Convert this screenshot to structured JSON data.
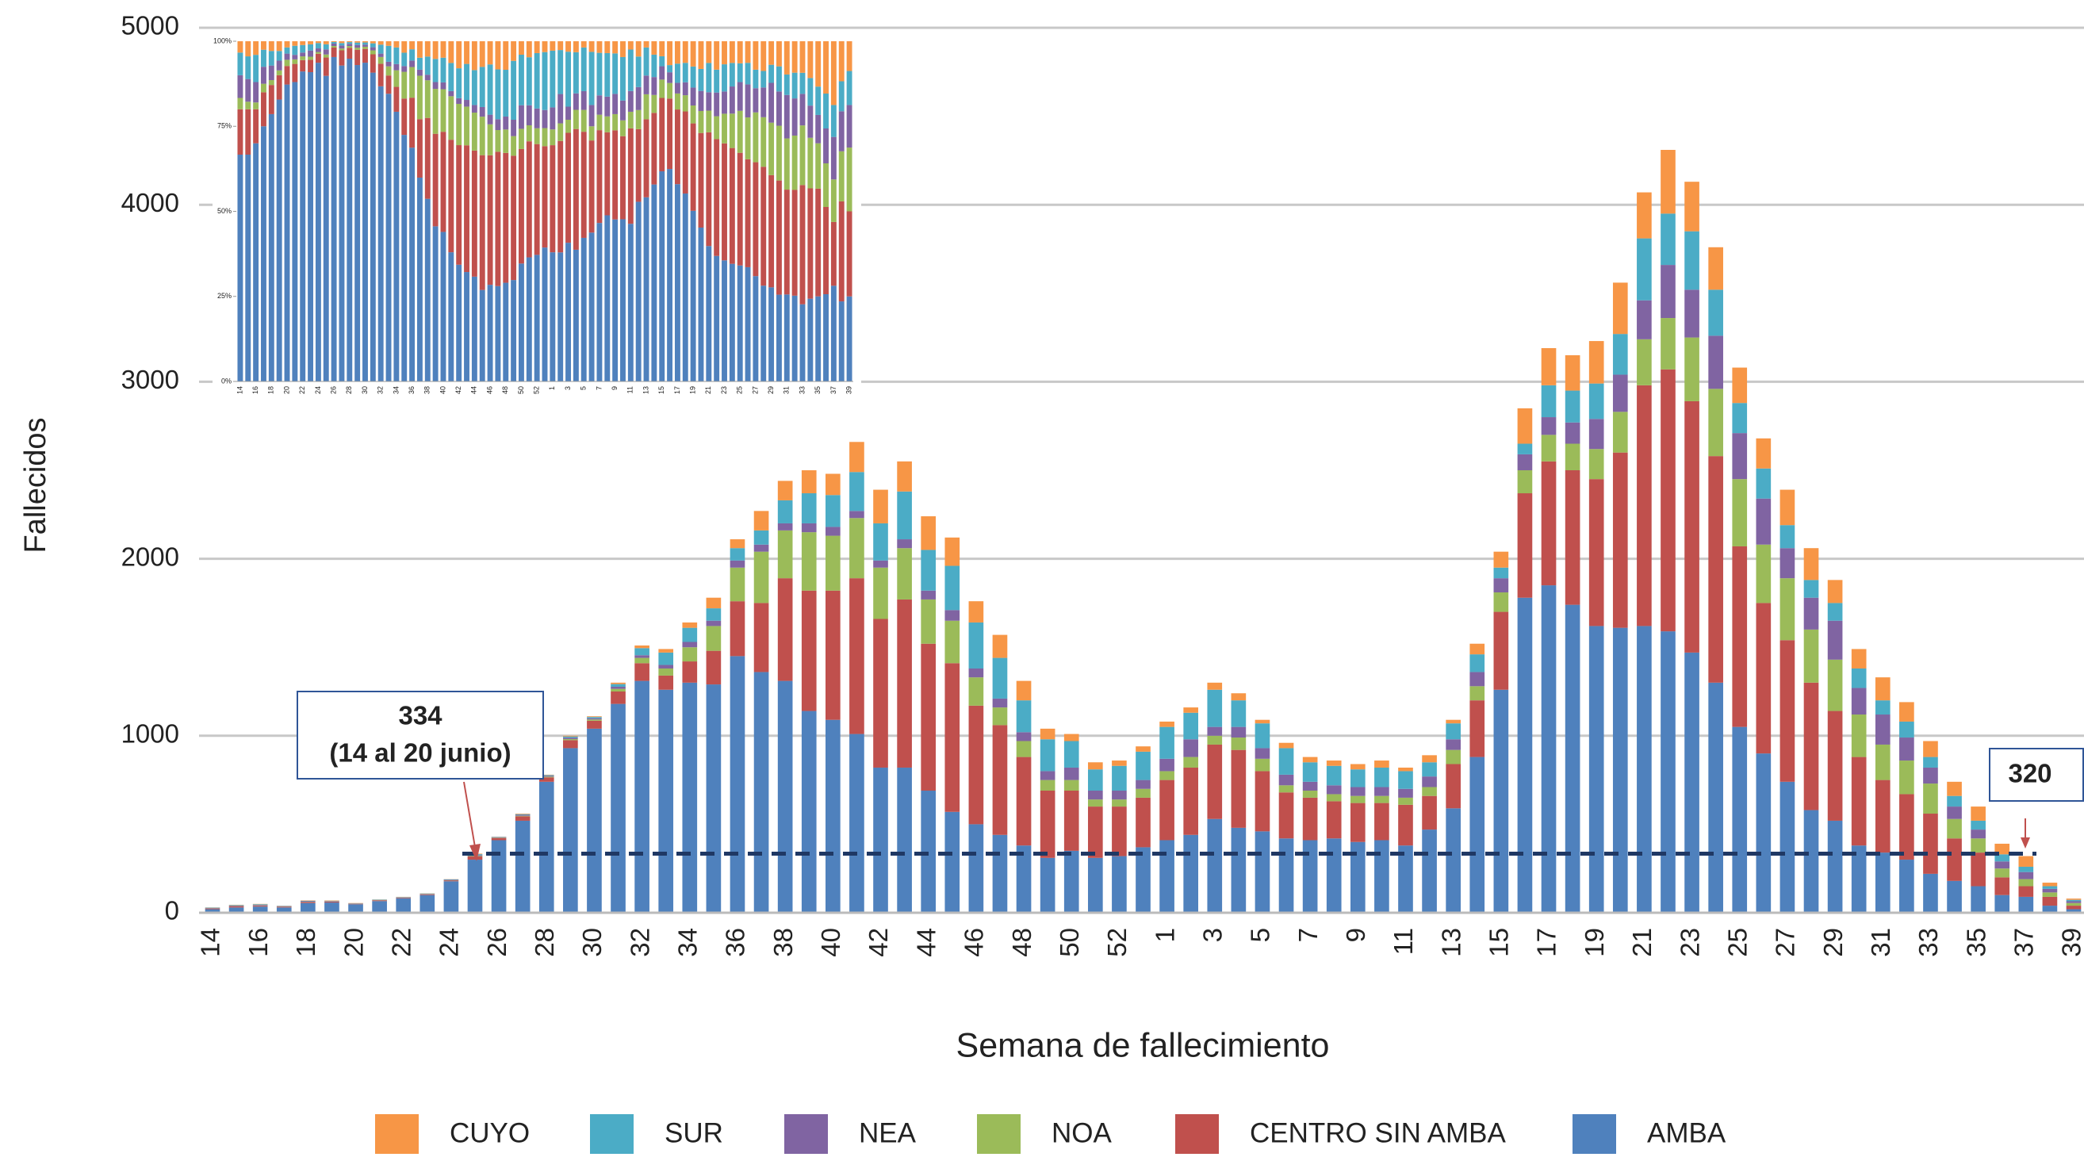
{
  "chart_data": [
    {
      "type": "bar",
      "stacked": true,
      "grid": true,
      "legend": "bottom",
      "xlabel": "Semana de fallecimiento",
      "ylabel": "Fallecidos",
      "ylim": [
        0,
        5000
      ],
      "yticks": [
        0,
        1000,
        2000,
        3000,
        4000,
        5000
      ],
      "categories": [
        "14",
        null,
        "16",
        null,
        "18",
        null,
        "20",
        null,
        "22",
        null,
        "24",
        null,
        "26",
        null,
        "28",
        null,
        "30",
        null,
        "32",
        null,
        "34",
        null,
        "36",
        null,
        "38",
        null,
        "40",
        null,
        "42",
        null,
        "44",
        null,
        "46",
        null,
        "48",
        null,
        "50",
        null,
        "52",
        null,
        "1",
        null,
        "3",
        null,
        "5",
        null,
        "7",
        null,
        "9",
        null,
        "11",
        null,
        "13",
        null,
        "15",
        null,
        "17",
        null,
        "19",
        null,
        "21",
        null,
        "23",
        null,
        "25",
        null,
        "27",
        null,
        "29",
        null,
        "31",
        null,
        "33",
        null,
        "35",
        null,
        "37",
        null,
        "39"
      ],
      "series": [
        {
          "name": "AMBA",
          "color": "#4f81bd",
          "values": [
            20,
            30,
            35,
            30,
            55,
            58,
            48,
            66,
            82,
            100,
            178,
            300,
            410,
            520,
            740,
            930,
            1040,
            1180,
            1310,
            1260,
            1300,
            1290,
            1450,
            1360,
            1310,
            1140,
            1090,
            1010,
            820,
            820,
            690,
            570,
            500,
            440,
            380,
            310,
            350,
            310,
            320,
            370,
            410,
            440,
            530,
            480,
            460,
            420,
            410,
            420,
            400,
            410,
            380,
            470,
            590,
            880,
            1260,
            1780,
            1850,
            1740,
            1620,
            1610,
            1620,
            1590,
            1470,
            1300,
            1050,
            900,
            740,
            580,
            520,
            380,
            340,
            300,
            220,
            180,
            150,
            100,
            90,
            40,
            20
          ]
        },
        {
          "name": "CENTRO SIN AMBA",
          "color": "#c0504d",
          "values": [
            4,
            6,
            5,
            4,
            6,
            5,
            3,
            4,
            3,
            4,
            5,
            18,
            12,
            25,
            25,
            45,
            45,
            70,
            100,
            80,
            120,
            190,
            310,
            390,
            580,
            680,
            730,
            880,
            840,
            950,
            830,
            840,
            670,
            620,
            500,
            380,
            340,
            290,
            280,
            280,
            340,
            380,
            420,
            440,
            340,
            260,
            240,
            210,
            220,
            210,
            230,
            190,
            250,
            320,
            440,
            590,
            700,
            760,
            830,
            990,
            1360,
            1480,
            1420,
            1280,
            1020,
            850,
            800,
            720,
            620,
            500,
            410,
            370,
            340,
            240,
            190,
            100,
            60,
            50,
            20
          ]
        },
        {
          "name": "NOA",
          "color": "#9bbb59",
          "values": [
            1,
            1,
            1,
            1,
            1,
            1,
            1,
            1,
            1,
            1,
            1,
            3,
            2,
            3,
            4,
            6,
            7,
            15,
            30,
            40,
            80,
            140,
            190,
            290,
            270,
            330,
            310,
            340,
            290,
            290,
            250,
            240,
            160,
            100,
            90,
            60,
            60,
            40,
            40,
            50,
            50,
            60,
            50,
            70,
            70,
            40,
            40,
            40,
            40,
            40,
            40,
            50,
            80,
            80,
            110,
            130,
            150,
            150,
            170,
            230,
            260,
            290,
            360,
            380,
            380,
            330,
            350,
            300,
            290,
            240,
            200,
            190,
            170,
            110,
            80,
            50,
            40,
            25,
            15
          ]
        },
        {
          "name": "NEA",
          "color": "#8064a2",
          "values": [
            2,
            3,
            3,
            2,
            3,
            2,
            1,
            1,
            1,
            2,
            2,
            5,
            3,
            5,
            5,
            8,
            7,
            12,
            15,
            20,
            30,
            30,
            40,
            40,
            40,
            50,
            50,
            40,
            40,
            50,
            50,
            60,
            50,
            50,
            50,
            50,
            70,
            50,
            50,
            50,
            70,
            100,
            50,
            60,
            60,
            60,
            50,
            50,
            50,
            50,
            50,
            60,
            60,
            80,
            80,
            90,
            100,
            120,
            170,
            210,
            220,
            300,
            270,
            300,
            260,
            260,
            170,
            180,
            220,
            150,
            170,
            130,
            90,
            70,
            50,
            40,
            40,
            20,
            10
          ]
        },
        {
          "name": "SUR",
          "color": "#4bacc6",
          "values": [
            2,
            3,
            4,
            2,
            3,
            2,
            1,
            2,
            2,
            2,
            3,
            5,
            2,
            4,
            4,
            7,
            7,
            15,
            40,
            70,
            80,
            70,
            70,
            80,
            130,
            170,
            180,
            220,
            210,
            270,
            230,
            250,
            260,
            230,
            180,
            180,
            150,
            120,
            140,
            160,
            180,
            150,
            210,
            150,
            140,
            150,
            110,
            110,
            100,
            110,
            100,
            80,
            90,
            100,
            60,
            60,
            180,
            180,
            200,
            230,
            350,
            290,
            330,
            260,
            170,
            170,
            130,
            100,
            100,
            110,
            80,
            90,
            60,
            60,
            50,
            40,
            30,
            15,
            8
          ]
        },
        {
          "name": "CUYO",
          "color": "#f79646",
          "values": [
            1,
            2,
            2,
            1,
            2,
            2,
            1,
            1,
            1,
            1,
            1,
            3,
            1,
            3,
            2,
            4,
            4,
            8,
            15,
            20,
            30,
            60,
            50,
            110,
            110,
            130,
            120,
            170,
            190,
            170,
            190,
            160,
            120,
            130,
            110,
            60,
            40,
            40,
            30,
            30,
            30,
            30,
            40,
            40,
            20,
            30,
            30,
            30,
            30,
            40,
            20,
            40,
            20,
            60,
            90,
            200,
            210,
            200,
            240,
            290,
            260,
            360,
            280,
            240,
            200,
            170,
            200,
            180,
            130,
            110,
            130,
            110,
            90,
            80,
            80,
            60,
            60,
            20,
            7
          ]
        }
      ],
      "annotations": [
        {
          "value": 334,
          "text": "(14 al 20 junio)"
        },
        {
          "value": 320
        }
      ]
    },
    {
      "type": "bar",
      "stacked": "percent",
      "ylim": [
        0,
        100
      ],
      "yticks": [
        {
          "value": 0,
          "label": "0%"
        },
        {
          "value": 25,
          "label": "25%"
        },
        {
          "value": 50,
          "label": "50%"
        },
        {
          "value": 75,
          "label": "75%"
        },
        {
          "value": 100,
          "label": "100%"
        }
      ],
      "categories": [
        "14",
        null,
        "16",
        null,
        "18",
        null,
        "20",
        null,
        "22",
        null,
        "24",
        null,
        "26",
        null,
        "28",
        null,
        "30",
        null,
        "32",
        null,
        "34",
        null,
        "36",
        null,
        "38",
        null,
        "40",
        null,
        "42",
        null,
        "44",
        null,
        "46",
        null,
        "48",
        null,
        "50",
        null,
        "52",
        null,
        "1",
        null,
        "3",
        null,
        "5",
        null,
        "7",
        null,
        "9",
        null,
        "11",
        null,
        "13",
        null,
        "15",
        null,
        "17",
        null,
        "19",
        null,
        "21",
        null,
        "23",
        null,
        "25",
        null,
        "27",
        null,
        "29",
        null,
        "31",
        null,
        "33",
        null,
        "35",
        null,
        "37",
        null,
        "39"
      ]
    }
  ]
}
